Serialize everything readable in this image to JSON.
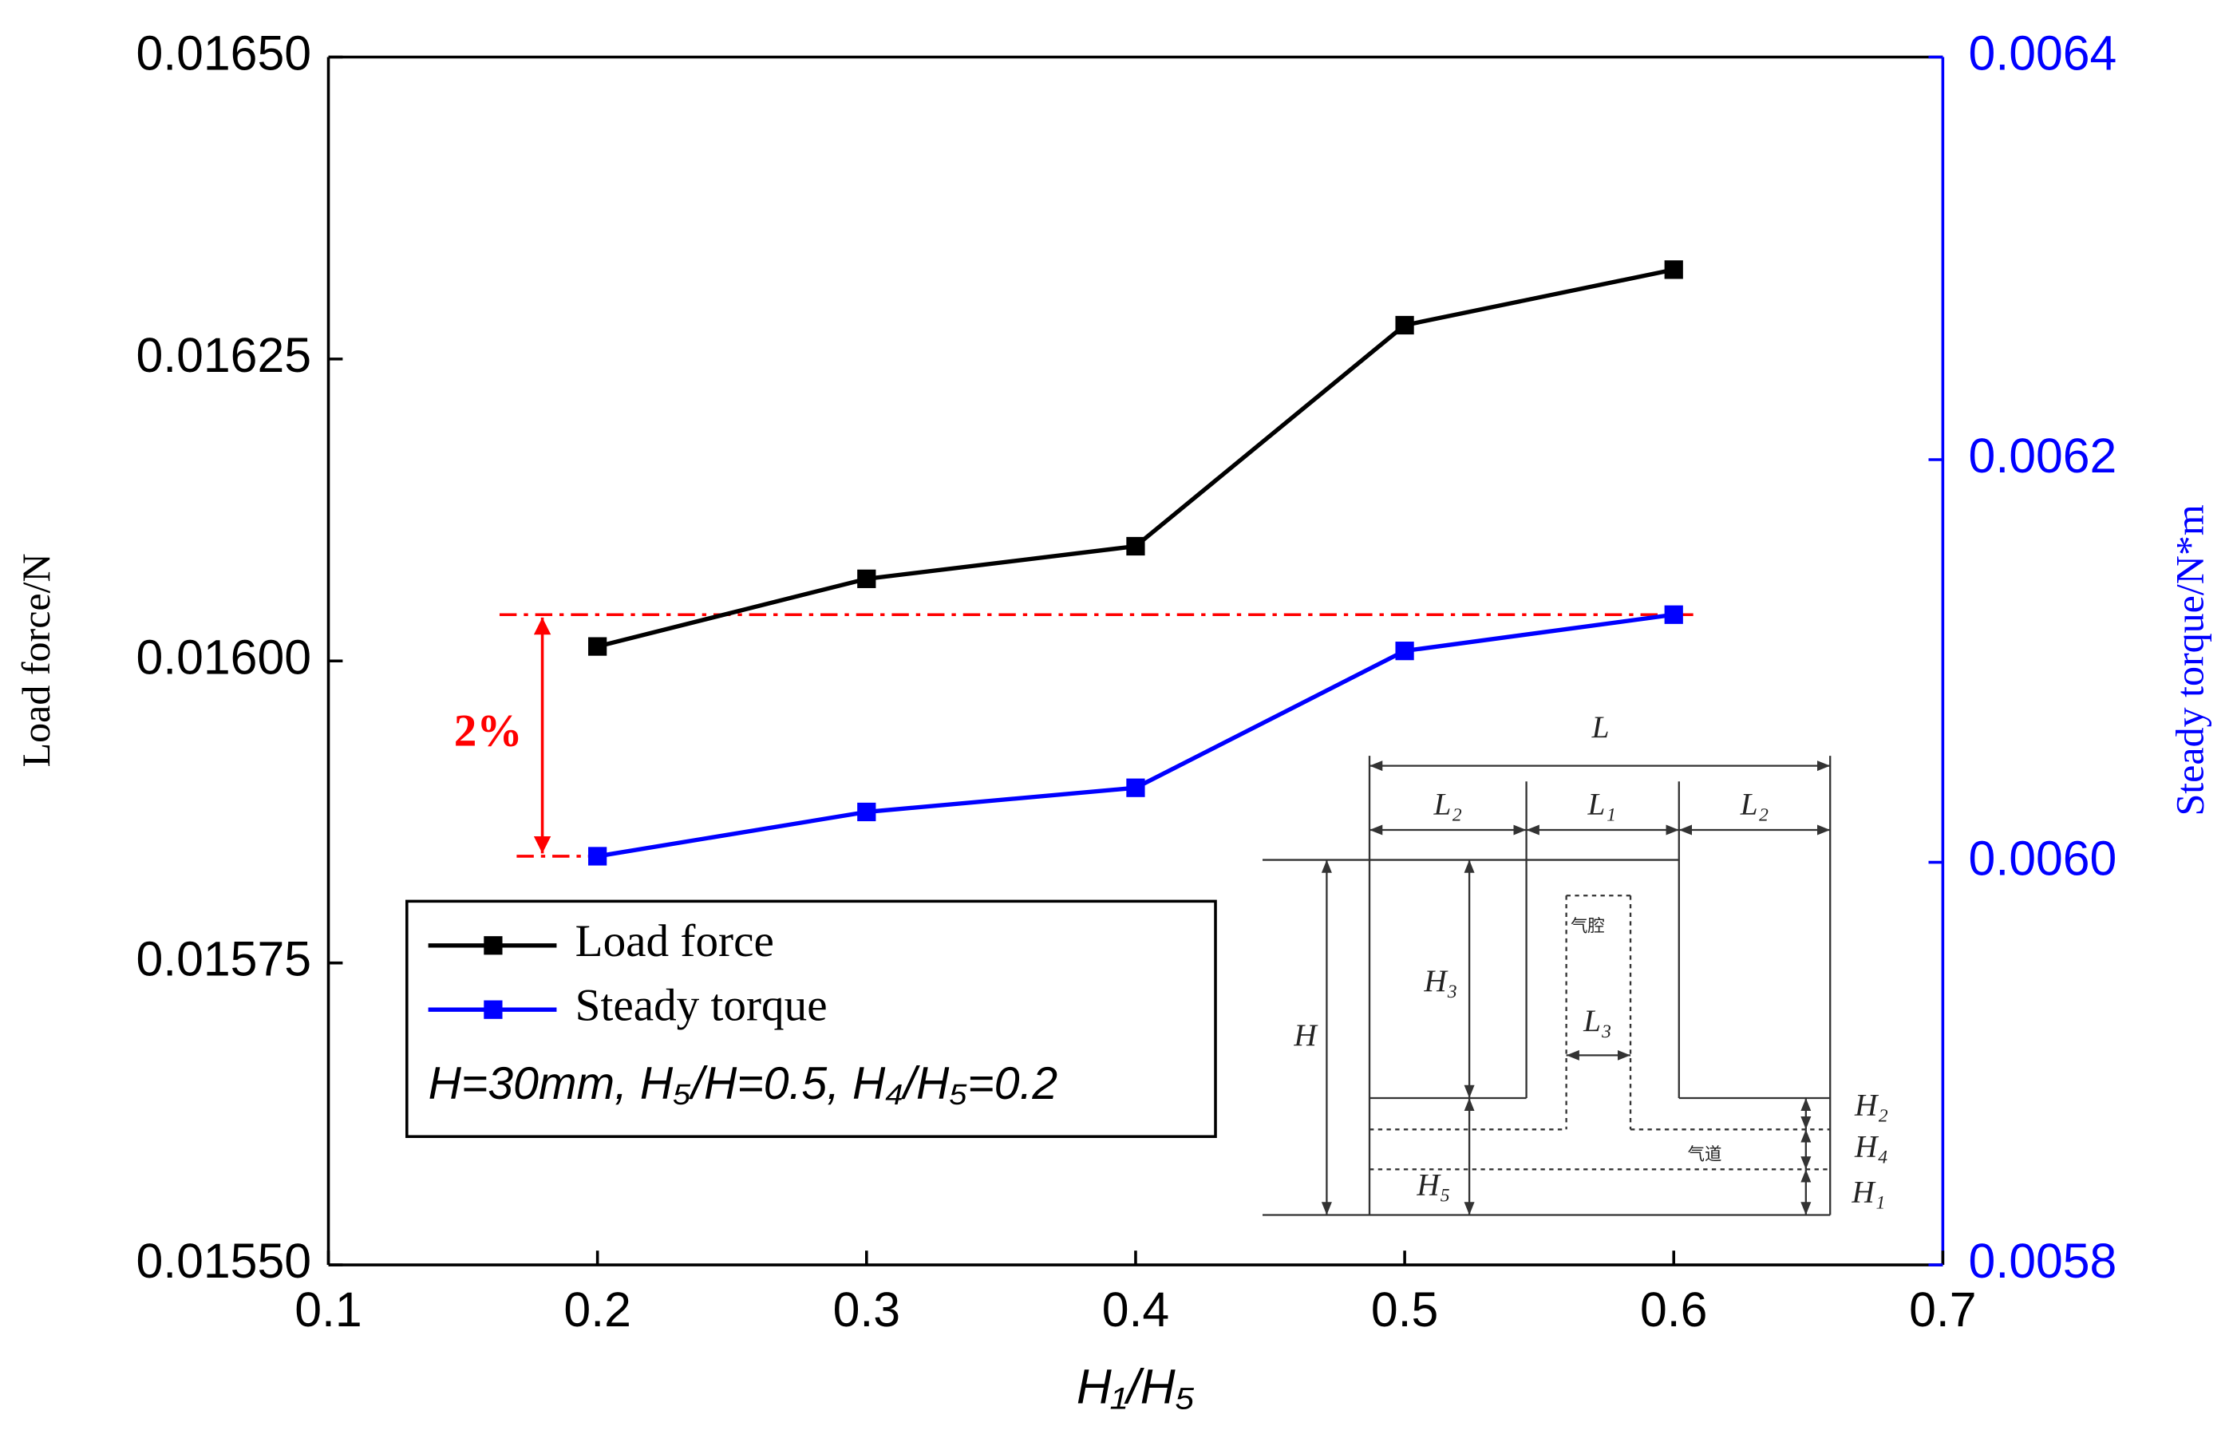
{
  "chart_data": {
    "type": "line",
    "x_label": "H₁/H₅",
    "y_label": "Load force/N",
    "y2_label": "Steady torque/N*m",
    "x": [
      0.2,
      0.3,
      0.4,
      0.5,
      0.6
    ],
    "series": [
      {
        "name": "Load force",
        "color": "#000000",
        "values": [
          0.016012,
          0.016068,
          0.016095,
          0.016278,
          0.016324
        ]
      },
      {
        "name": "Steady torque",
        "color": "#0000ff",
        "axis": "y2",
        "values": [
          0.006003,
          0.006025,
          0.006037,
          0.006105,
          0.006123
        ]
      }
    ],
    "xlim": [
      0.1,
      0.7
    ],
    "xticks": [
      0.1,
      0.2,
      0.3,
      0.4,
      0.5,
      0.6,
      0.7
    ],
    "ylim": [
      0.0155,
      0.0165
    ],
    "yticks": [
      {
        "value": 0.0155,
        "label": "0.01550"
      },
      {
        "value": 0.01575,
        "label": "0.01575"
      },
      {
        "value": 0.016,
        "label": "0.01600"
      },
      {
        "value": 0.01625,
        "label": "0.01625"
      },
      {
        "value": 0.0165,
        "label": "0.01650"
      }
    ],
    "y2lim": [
      0.0058,
      0.0064
    ],
    "y2ticks": [
      0.0058,
      {
        "value": 0.006,
        "label": "0.0060"
      },
      0.0062,
      0.0064
    ],
    "y2_color": "#0000ff",
    "legend": "lower left",
    "legend_note": "H=30mm, H₅/H=0.5, H₄/H₅=0.2",
    "annotation": "2%",
    "annotation_color": "#ff0000"
  },
  "inset": {
    "labels": [
      "L",
      "L₂",
      "L₁",
      "L₂",
      "H₃",
      "L₃",
      "H",
      "H₂",
      "H₄",
      "H₁",
      "H₅",
      "气腔",
      "气道"
    ]
  }
}
